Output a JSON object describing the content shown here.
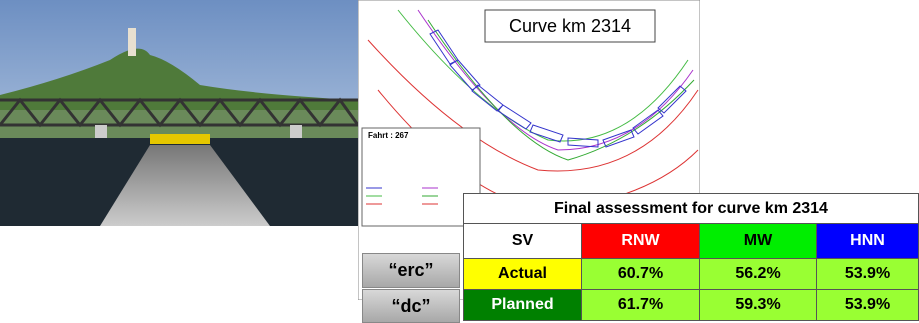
{
  "plot": {
    "title": "Curve km 2314",
    "legend_title": "Fahrt : 267"
  },
  "side_labels": [
    "“erc”",
    "“dc”"
  ],
  "table": {
    "title": "Final assessment for curve km 2314",
    "header": [
      "SV",
      "RNW",
      "MW",
      "HNN"
    ],
    "rows": [
      [
        "Actual",
        "60.7%",
        "56.2%",
        "53.9%"
      ],
      [
        "Planned",
        "61.7%",
        "59.3%",
        "53.9%"
      ]
    ]
  }
}
